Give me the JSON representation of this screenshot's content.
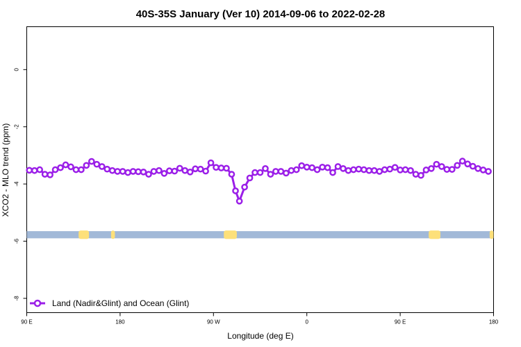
{
  "chart_data": {
    "type": "line",
    "title": "40S-35S January (Ver 10)   2014-09-06 to 2022-02-28",
    "xlabel": "Longitude (deg E)",
    "ylabel": "XCO2 - MLO trend (ppm)",
    "xlim": [
      90,
      450
    ],
    "ylim": [
      -8.5,
      1.5
    ],
    "x_ticks": [
      {
        "value": 90,
        "label": "90 E"
      },
      {
        "value": 162,
        "label": "180"
      },
      {
        "value": 234,
        "label": "90 W"
      },
      {
        "value": 306,
        "label": "0"
      },
      {
        "value": 378,
        "label": "90 E"
      },
      {
        "value": 450,
        "label": "180"
      }
    ],
    "y_ticks": [
      {
        "value": 0,
        "label": "0"
      },
      {
        "value": -2,
        "label": "-2"
      },
      {
        "value": -4,
        "label": "-4"
      },
      {
        "value": -6,
        "label": "-6"
      },
      {
        "value": -8,
        "label": "-8"
      }
    ],
    "grid": false,
    "legend_position": "bottom-left",
    "land_ocean_strip": {
      "y_range": [
        -5.9,
        -5.65
      ],
      "ocean_color": "#a2b9d8",
      "land_color": "#fde07a",
      "land_segments": [
        [
          130,
          138
        ],
        [
          155,
          158
        ],
        [
          242,
          252
        ],
        [
          400,
          409
        ],
        [
          447,
          450
        ]
      ]
    },
    "series": [
      {
        "name": "Land (Nadir&Glint) and Ocean (Glint)",
        "color": "#9b1fe8",
        "points": [
          [
            92,
            -3.52
          ],
          [
            96,
            -3.53
          ],
          [
            100,
            -3.5
          ],
          [
            104,
            -3.66
          ],
          [
            108,
            -3.68
          ],
          [
            112,
            -3.5
          ],
          [
            116,
            -3.43
          ],
          [
            120,
            -3.33
          ],
          [
            124,
            -3.4
          ],
          [
            128,
            -3.5
          ],
          [
            132,
            -3.5
          ],
          [
            136,
            -3.35
          ],
          [
            140,
            -3.21
          ],
          [
            144,
            -3.31
          ],
          [
            148,
            -3.39
          ],
          [
            152,
            -3.48
          ],
          [
            156,
            -3.53
          ],
          [
            160,
            -3.56
          ],
          [
            164,
            -3.56
          ],
          [
            168,
            -3.6
          ],
          [
            172,
            -3.56
          ],
          [
            176,
            -3.57
          ],
          [
            180,
            -3.58
          ],
          [
            184,
            -3.66
          ],
          [
            188,
            -3.56
          ],
          [
            192,
            -3.53
          ],
          [
            196,
            -3.63
          ],
          [
            200,
            -3.54
          ],
          [
            204,
            -3.55
          ],
          [
            208,
            -3.45
          ],
          [
            212,
            -3.53
          ],
          [
            216,
            -3.58
          ],
          [
            220,
            -3.47
          ],
          [
            224,
            -3.48
          ],
          [
            228,
            -3.55
          ],
          [
            232,
            -3.26
          ],
          [
            236,
            -3.42
          ],
          [
            240,
            -3.44
          ],
          [
            244,
            -3.45
          ],
          [
            248,
            -3.66
          ],
          [
            251,
            -4.24
          ],
          [
            254,
            -4.6
          ],
          [
            258,
            -4.11
          ],
          [
            262,
            -3.79
          ],
          [
            266,
            -3.6
          ],
          [
            270,
            -3.6
          ],
          [
            274,
            -3.46
          ],
          [
            278,
            -3.66
          ],
          [
            282,
            -3.56
          ],
          [
            286,
            -3.56
          ],
          [
            290,
            -3.62
          ],
          [
            294,
            -3.53
          ],
          [
            298,
            -3.5
          ],
          [
            302,
            -3.36
          ],
          [
            306,
            -3.41
          ],
          [
            310,
            -3.43
          ],
          [
            314,
            -3.5
          ],
          [
            318,
            -3.41
          ],
          [
            322,
            -3.43
          ],
          [
            326,
            -3.6
          ],
          [
            330,
            -3.39
          ],
          [
            334,
            -3.46
          ],
          [
            338,
            -3.53
          ],
          [
            342,
            -3.5
          ],
          [
            346,
            -3.48
          ],
          [
            350,
            -3.5
          ],
          [
            354,
            -3.53
          ],
          [
            358,
            -3.53
          ],
          [
            362,
            -3.56
          ],
          [
            366,
            -3.5
          ],
          [
            370,
            -3.48
          ],
          [
            374,
            -3.42
          ],
          [
            378,
            -3.51
          ],
          [
            382,
            -3.5
          ],
          [
            386,
            -3.53
          ],
          [
            390,
            -3.66
          ],
          [
            394,
            -3.7
          ],
          [
            398,
            -3.51
          ],
          [
            402,
            -3.46
          ],
          [
            406,
            -3.31
          ],
          [
            410,
            -3.39
          ],
          [
            414,
            -3.49
          ],
          [
            418,
            -3.49
          ],
          [
            422,
            -3.35
          ],
          [
            426,
            -3.2
          ],
          [
            430,
            -3.3
          ],
          [
            434,
            -3.38
          ],
          [
            438,
            -3.46
          ],
          [
            442,
            -3.51
          ],
          [
            446,
            -3.56
          ]
        ]
      }
    ]
  }
}
